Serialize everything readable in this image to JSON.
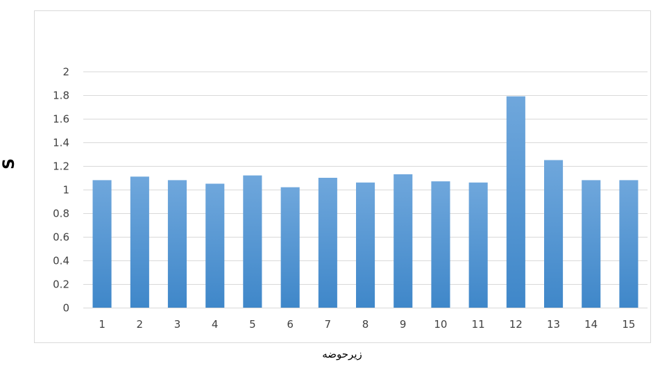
{
  "chart_data": {
    "type": "bar",
    "categories": [
      "1",
      "2",
      "3",
      "4",
      "5",
      "6",
      "7",
      "8",
      "9",
      "10",
      "11",
      "12",
      "13",
      "14",
      "15"
    ],
    "values": [
      1.08,
      1.11,
      1.08,
      1.05,
      1.12,
      1.02,
      1.1,
      1.06,
      1.13,
      1.07,
      1.06,
      1.79,
      1.25,
      1.08,
      1.08
    ],
    "title": "",
    "xlabel": "زیرحوضه",
    "ylabel": "S",
    "ylim": [
      0,
      2
    ],
    "yticks": [
      "0",
      "0.2",
      "0.4",
      "0.6",
      "0.8",
      "1",
      "1.2",
      "1.4",
      "1.6",
      "1.8",
      "2"
    ],
    "grid": true,
    "legend": "none",
    "colors": {
      "bar_top": "#6fa7dc",
      "bar_bottom": "#3f87c9",
      "grid": "#d9d9d9",
      "border": "#d9d9d9",
      "tick_text": "#404040"
    }
  }
}
